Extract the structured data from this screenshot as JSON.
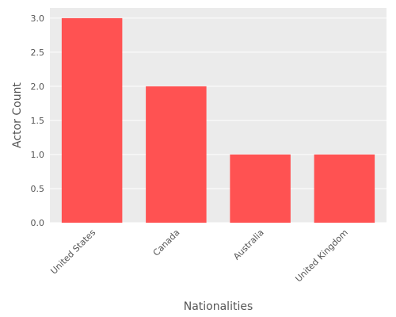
{
  "chart_data": {
    "type": "bar",
    "title": "",
    "xlabel": "Nationalities",
    "ylabel": "Actor Count",
    "categories": [
      "United States",
      "Canada",
      "Australia",
      "United Kingdom"
    ],
    "values": [
      3,
      2,
      1,
      1
    ],
    "ylim": [
      0,
      3.15
    ],
    "yticks": [
      "0.0",
      "0.5",
      "1.0",
      "1.5",
      "2.0",
      "2.5",
      "3.0"
    ],
    "grid": true,
    "legend": "none",
    "colors": {
      "bar": "#ff5252",
      "plot_background": "#ebebeb",
      "gridline": "#ffffff",
      "text": "#555555"
    }
  }
}
